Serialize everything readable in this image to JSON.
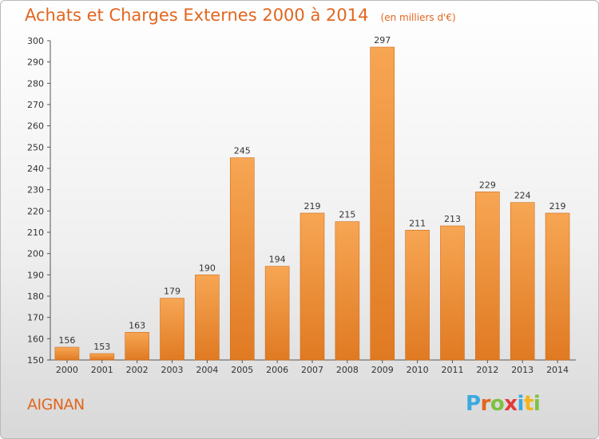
{
  "header": {
    "title": "Achats et Charges Externes 2000 à 2014",
    "unit": "(en milliers d'€)"
  },
  "footer": {
    "city": "AIGNAN",
    "logo_text": "Proxiti",
    "logo_colors": [
      "#3aa9e0",
      "#e2661e",
      "#7cc242",
      "#e23a3a",
      "#3aa9e0",
      "#f4b41a",
      "#7cc242"
    ]
  },
  "colors": {
    "accent": "#e2661e",
    "bar_top": "#f7a654",
    "bar_bottom": "#e07a22",
    "bar_edge": "#cf6d1a"
  },
  "chart_data": {
    "type": "bar",
    "title": "Achats et Charges Externes 2000 à 2014",
    "subtitle": "(en milliers d'€)",
    "xlabel": "",
    "ylabel": "",
    "categories": [
      "2000",
      "2001",
      "2002",
      "2003",
      "2004",
      "2005",
      "2006",
      "2007",
      "2008",
      "2009",
      "2010",
      "2011",
      "2012",
      "2013",
      "2014"
    ],
    "values": [
      156,
      153,
      163,
      179,
      190,
      245,
      194,
      219,
      215,
      297,
      211,
      213,
      229,
      224,
      219
    ],
    "ylim": [
      150,
      300
    ],
    "yticks": [
      150,
      160,
      170,
      180,
      190,
      200,
      210,
      220,
      230,
      240,
      250,
      260,
      270,
      280,
      290,
      300
    ],
    "grid": false,
    "legend": "none"
  }
}
